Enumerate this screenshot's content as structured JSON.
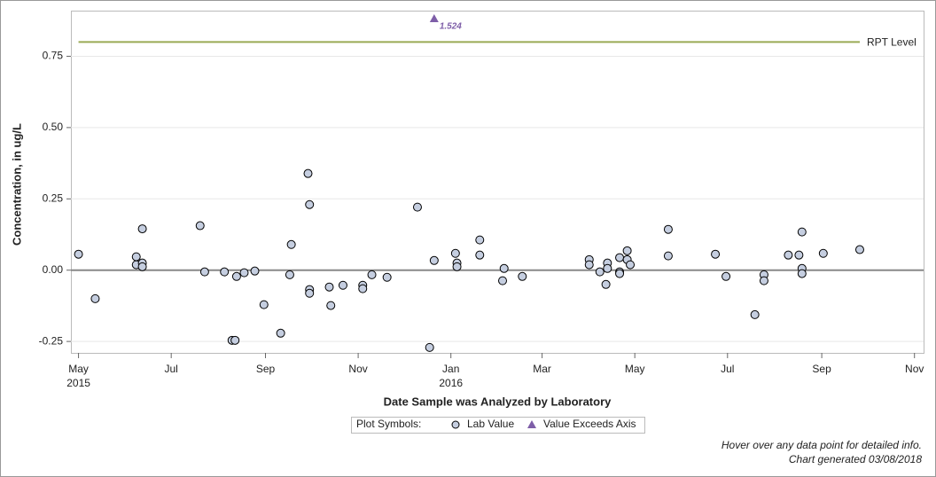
{
  "chart_data": {
    "type": "scatter",
    "y_label": "Concentration, in ug/L",
    "x_label": "Date Sample was Analyzed by Laboratory",
    "xlim": [
      "2015-04-26",
      "2016-11-07"
    ],
    "xticks": [
      {
        "value": "2015-05-01",
        "label": "May"
      },
      {
        "value": "2015-07-01",
        "label": "Jul"
      },
      {
        "value": "2015-09-01",
        "label": "Sep"
      },
      {
        "value": "2015-11-01",
        "label": "Nov"
      },
      {
        "value": "2016-01-01",
        "label": "Jan"
      },
      {
        "value": "2016-03-01",
        "label": "Mar"
      },
      {
        "value": "2016-05-01",
        "label": "May"
      },
      {
        "value": "2016-07-01",
        "label": "Jul"
      },
      {
        "value": "2016-09-01",
        "label": "Sep"
      },
      {
        "value": "2016-11-01",
        "label": "Nov"
      }
    ],
    "xtick_years": [
      {
        "value": "2015-05-01",
        "label": "2015"
      },
      {
        "value": "2016-01-01",
        "label": "2016"
      }
    ],
    "ylim": [
      -0.29,
      0.91
    ],
    "yticks": [
      -0.25,
      {
        "value": 0,
        "label": "0.00"
      },
      0.25,
      {
        "value": 0.5,
        "label": "0.50"
      },
      0.75
    ],
    "zero_line": true,
    "reference_lines": [
      {
        "value": 0.8,
        "label": "RPT Level",
        "color": "#9aaa55"
      }
    ],
    "series": [
      {
        "name": "Lab Value",
        "marker": "circle",
        "color": "#c5cee0",
        "x": [
          "2015-05-01",
          "2015-05-12",
          "2015-06-08",
          "2015-06-08",
          "2015-06-12",
          "2015-06-12",
          "2015-06-12",
          "2015-07-20",
          "2015-07-23",
          "2015-08-05",
          "2015-08-10",
          "2015-08-12",
          "2015-08-13",
          "2015-08-18",
          "2015-08-25",
          "2015-08-31",
          "2015-09-11",
          "2015-09-17",
          "2015-09-18",
          "2015-09-29",
          "2015-09-30",
          "2015-09-30",
          "2015-09-30",
          "2015-10-13",
          "2015-10-14",
          "2015-10-22",
          "2015-11-04",
          "2015-11-04",
          "2015-11-10",
          "2015-11-20",
          "2015-12-10",
          "2015-12-18",
          "2015-12-21",
          "2016-01-04",
          "2016-01-05",
          "2016-01-05",
          "2016-01-20",
          "2016-01-20",
          "2016-02-04",
          "2016-02-05",
          "2016-02-17",
          "2016-04-01",
          "2016-04-01",
          "2016-04-08",
          "2016-04-12",
          "2016-04-13",
          "2016-04-13",
          "2016-04-21",
          "2016-04-21",
          "2016-04-21",
          "2016-04-26",
          "2016-04-26",
          "2016-04-28",
          "2016-05-23",
          "2016-05-23",
          "2016-06-23",
          "2016-06-30",
          "2016-07-19",
          "2016-07-25",
          "2016-07-25",
          "2016-08-10",
          "2016-08-17",
          "2016-08-19",
          "2016-08-19",
          "2016-08-19",
          "2016-09-02",
          "2016-09-26"
        ],
        "values": [
          0.056,
          -0.1,
          0.047,
          0.019,
          0.145,
          0.025,
          0.012,
          0.156,
          -0.006,
          -0.006,
          -0.246,
          -0.246,
          -0.022,
          -0.009,
          -0.003,
          -0.121,
          -0.221,
          -0.016,
          0.09,
          0.339,
          0.23,
          -0.068,
          -0.081,
          -0.059,
          -0.124,
          -0.053,
          -0.053,
          -0.065,
          -0.016,
          -0.025,
          0.221,
          -0.271,
          0.034,
          0.059,
          0.025,
          0.012,
          0.053,
          0.106,
          -0.037,
          0.006,
          -0.022,
          0.037,
          0.019,
          -0.006,
          -0.05,
          0.025,
          0.006,
          0.044,
          -0.006,
          -0.012,
          0.068,
          0.037,
          0.019,
          0.143,
          0.05,
          0.056,
          -0.022,
          -0.156,
          -0.016,
          -0.037,
          0.053,
          0.053,
          0.134,
          0.006,
          -0.012,
          0.059,
          0.072
        ]
      },
      {
        "name": "Value Exceeds Axis",
        "marker": "triangle",
        "color": "#7e5ea8",
        "x": [
          "2015-12-21"
        ],
        "values": [
          1.524
        ],
        "value_labels": [
          "1.524"
        ]
      }
    ],
    "legend_title": "Plot Symbols:",
    "notes": [
      "Hover over any data point for detailed info.",
      "Chart generated 03/08/2018"
    ]
  }
}
